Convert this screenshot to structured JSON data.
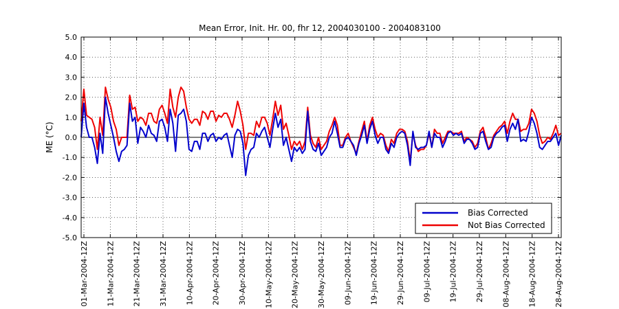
{
  "chart_data": {
    "type": "line",
    "title": "Mean Error, Init. Hr. 00, fhr 12, 2004030100 - 2004083100",
    "xlabel": "",
    "ylabel": "ME (°C)",
    "ylim": [
      -5.0,
      5.0
    ],
    "yticks": [
      "5.0",
      "4.0",
      "3.0",
      "2.0",
      "1.0",
      "0.0",
      "-1.0",
      "-2.0",
      "-3.0",
      "-4.0",
      "-5.0"
    ],
    "x_tick_labels": [
      "01-Mar-2004-12Z",
      "11-Mar-2004-12Z",
      "21-Mar-2004-12Z",
      "31-Mar-2004-12Z",
      "10-Apr-2004-12Z",
      "20-Apr-2004-12Z",
      "30-Apr-2004-12Z",
      "10-May-2004-12Z",
      "20-May-2004-12Z",
      "30-May-2004-12Z",
      "09-Jun-2004-12Z",
      "19-Jun-2004-12Z",
      "29-Jun-2004-12Z",
      "09-Jul-2004-12Z",
      "19-Jul-2004-12Z",
      "29-Jul-2004-12Z",
      "08-Aug-2004-12Z",
      "18-Aug-2004-12Z",
      "28-Aug-2004-12Z"
    ],
    "x_start": "01-Mar-2004-12Z",
    "x_end": "31-Aug-2004-12Z",
    "grid": true,
    "legend_position": "bottom-right",
    "series": [
      {
        "name": "Bias Corrected",
        "color": "#0000cc",
        "values": [
          0.0,
          1.7,
          0.5,
          0.0,
          0.0,
          -0.5,
          -1.3,
          0.2,
          -0.8,
          2.0,
          1.2,
          0.6,
          0.0,
          -0.7,
          -1.2,
          -0.7,
          -0.6,
          -0.4,
          1.7,
          0.8,
          1.0,
          -0.3,
          0.5,
          0.3,
          0.0,
          0.6,
          0.2,
          0.1,
          -0.2,
          0.8,
          0.9,
          0.5,
          -0.2,
          1.4,
          0.7,
          -0.7,
          1.1,
          1.2,
          1.4,
          0.8,
          -0.6,
          -0.7,
          -0.2,
          -0.2,
          -0.6,
          0.2,
          0.2,
          -0.2,
          0.1,
          0.2,
          -0.2,
          0.0,
          -0.1,
          0.1,
          0.2,
          -0.4,
          -1.0,
          0.1,
          0.4,
          0.3,
          -0.3,
          -1.9,
          -0.9,
          -0.6,
          -0.5,
          0.2,
          0.0,
          0.3,
          0.5,
          0.0,
          -0.5,
          0.4,
          1.2,
          0.5,
          0.9,
          -0.4,
          0.0,
          -0.6,
          -1.2,
          -0.5,
          -0.7,
          -0.5,
          -0.8,
          -0.6,
          1.3,
          -0.2,
          -0.6,
          -0.7,
          -0.3,
          -0.9,
          -0.7,
          -0.5,
          0.0,
          0.2,
          0.8,
          0.2,
          -0.5,
          -0.5,
          -0.1,
          0.0,
          -0.2,
          -0.4,
          -0.9,
          -0.3,
          0.1,
          0.6,
          -0.3,
          0.4,
          0.8,
          0.1,
          -0.3,
          0.0,
          0.0,
          -0.6,
          -0.8,
          -0.3,
          -0.5,
          0.0,
          0.2,
          0.3,
          0.2,
          -0.4,
          -1.4,
          0.3,
          -0.5,
          -0.6,
          -0.5,
          -0.5,
          -0.4,
          0.3,
          -0.5,
          0.2,
          0.0,
          0.0,
          -0.5,
          -0.2,
          0.2,
          0.3,
          0.1,
          0.2,
          0.1,
          0.2,
          -0.3,
          -0.1,
          -0.1,
          -0.3,
          -0.6,
          -0.5,
          0.2,
          0.3,
          -0.2,
          -0.6,
          -0.5,
          0.0,
          0.2,
          0.3,
          0.5,
          0.6,
          -0.2,
          0.4,
          0.7,
          0.4,
          0.9,
          -0.2,
          -0.1,
          -0.2,
          0.3,
          1.0,
          0.7,
          0.2,
          -0.5,
          -0.6,
          -0.4,
          -0.2,
          -0.2,
          0.0,
          0.2,
          -0.4,
          0.1
        ]
      },
      {
        "name": "Not Bias Corrected",
        "color": "#ee0000",
        "values": [
          0.8,
          2.4,
          1.1,
          1.0,
          0.9,
          0.5,
          -0.6,
          1.0,
          0.1,
          2.5,
          1.9,
          1.5,
          0.8,
          0.4,
          -0.4,
          0.0,
          0.0,
          0.0,
          2.1,
          1.4,
          1.5,
          0.8,
          1.0,
          0.9,
          0.6,
          1.2,
          1.2,
          0.8,
          0.7,
          1.4,
          1.6,
          1.2,
          0.7,
          2.4,
          1.5,
          1.0,
          2.0,
          2.5,
          2.3,
          1.5,
          0.9,
          0.7,
          0.9,
          0.9,
          0.6,
          1.3,
          1.2,
          0.9,
          1.3,
          1.3,
          0.8,
          1.1,
          1.0,
          1.2,
          1.2,
          0.9,
          0.5,
          1.1,
          1.8,
          1.3,
          0.6,
          -0.6,
          0.2,
          0.2,
          0.1,
          0.8,
          0.5,
          1.0,
          1.0,
          0.7,
          0.1,
          0.9,
          1.8,
          1.1,
          1.6,
          0.4,
          0.7,
          0.1,
          -0.6,
          -0.2,
          -0.4,
          -0.2,
          -0.6,
          -0.2,
          1.5,
          0.1,
          -0.3,
          -0.5,
          0.0,
          -0.6,
          -0.4,
          -0.2,
          0.3,
          0.6,
          1.0,
          0.6,
          -0.4,
          -0.4,
          0.0,
          0.2,
          -0.2,
          -0.5,
          -0.8,
          -0.2,
          0.3,
          0.8,
          -0.2,
          0.6,
          1.0,
          0.4,
          0.0,
          0.2,
          0.1,
          -0.4,
          -0.7,
          -0.1,
          -0.3,
          0.2,
          0.4,
          0.4,
          0.3,
          -0.2,
          -1.2,
          0.2,
          -0.4,
          -0.7,
          -0.6,
          -0.6,
          -0.4,
          0.2,
          -0.5,
          0.4,
          0.2,
          0.2,
          -0.3,
          0.0,
          0.3,
          0.3,
          0.2,
          0.2,
          0.2,
          0.3,
          -0.2,
          0.0,
          -0.1,
          -0.2,
          -0.5,
          -0.3,
          0.3,
          0.5,
          0.0,
          -0.6,
          -0.3,
          0.1,
          0.3,
          0.5,
          0.6,
          0.8,
          0.2,
          0.8,
          1.2,
          0.9,
          0.9,
          0.3,
          0.4,
          0.4,
          0.7,
          1.4,
          1.2,
          0.8,
          0.1,
          -0.3,
          -0.2,
          0.0,
          -0.1,
          0.2,
          0.6,
          0.1,
          0.2
        ]
      }
    ]
  }
}
